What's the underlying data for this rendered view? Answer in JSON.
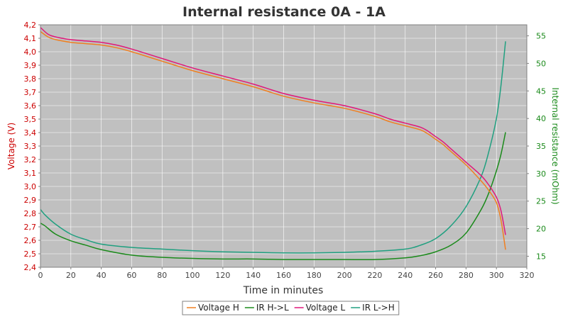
{
  "chart_data": {
    "type": "line",
    "title": "Internal resistance  0A - 1A",
    "xlabel": "Time in minutes",
    "ylabel_left": "Voltage (V)",
    "ylabel_right": "Internal resistance (mOhm)",
    "xlim": [
      0,
      320
    ],
    "ylim_left": [
      2.4,
      4.2
    ],
    "ylim_right": [
      13,
      57
    ],
    "x_ticks": [
      "0",
      "20",
      "40",
      "60",
      "80",
      "100",
      "120",
      "140",
      "160",
      "180",
      "200",
      "220",
      "240",
      "260",
      "280",
      "300",
      "320"
    ],
    "y_left_ticks": [
      "2,4",
      "2,5",
      "2,6",
      "2,7",
      "2,8",
      "2,9",
      "3,0",
      "3,1",
      "3,2",
      "3,3",
      "3,4",
      "3,5",
      "3,6",
      "3,7",
      "3,8",
      "3,9",
      "4,0",
      "4,1",
      "4,2"
    ],
    "y_right_ticks": [
      "15",
      "20",
      "25",
      "30",
      "35",
      "40",
      "45",
      "50",
      "55"
    ],
    "grid": true,
    "legend_position": "bottom",
    "background_color": "#c0c0c0",
    "series": [
      {
        "name": "Voltage H",
        "axis": "left",
        "color": "#f07f20",
        "x": [
          0,
          5,
          10,
          20,
          30,
          40,
          50,
          60,
          80,
          100,
          120,
          140,
          160,
          180,
          200,
          220,
          230,
          240,
          250,
          255,
          260,
          265,
          270,
          280,
          290,
          295,
          300,
          303,
          306
        ],
        "y": [
          4.15,
          4.11,
          4.09,
          4.07,
          4.06,
          4.05,
          4.03,
          4.0,
          3.93,
          3.86,
          3.8,
          3.74,
          3.67,
          3.62,
          3.58,
          3.52,
          3.48,
          3.45,
          3.42,
          3.39,
          3.35,
          3.31,
          3.26,
          3.16,
          3.04,
          2.97,
          2.88,
          2.75,
          2.53
        ]
      },
      {
        "name": "IR H->L",
        "axis": "right",
        "color": "#1a8a1a",
        "x": [
          0,
          3,
          10,
          20,
          30,
          40,
          60,
          80,
          100,
          120,
          140,
          160,
          180,
          200,
          220,
          240,
          250,
          260,
          270,
          280,
          290,
          295,
          300,
          303,
          306
        ],
        "y": [
          21.0,
          20.5,
          19.0,
          17.8,
          17.0,
          16.2,
          15.2,
          14.8,
          14.6,
          14.5,
          14.5,
          14.4,
          14.4,
          14.4,
          14.4,
          14.7,
          15.1,
          15.8,
          17.0,
          19.2,
          23.5,
          26.5,
          30.5,
          33.5,
          37.5
        ]
      },
      {
        "name": "Voltage L",
        "axis": "left",
        "color": "#e0187a",
        "x": [
          0,
          5,
          10,
          20,
          30,
          40,
          50,
          60,
          80,
          100,
          120,
          140,
          160,
          180,
          200,
          220,
          230,
          240,
          250,
          255,
          260,
          265,
          270,
          280,
          290,
          295,
          300,
          303,
          306
        ],
        "y": [
          4.18,
          4.13,
          4.11,
          4.09,
          4.08,
          4.07,
          4.05,
          4.02,
          3.95,
          3.88,
          3.82,
          3.76,
          3.69,
          3.64,
          3.6,
          3.54,
          3.5,
          3.47,
          3.44,
          3.41,
          3.37,
          3.33,
          3.28,
          3.18,
          3.08,
          3.01,
          2.92,
          2.82,
          2.64
        ]
      },
      {
        "name": "IR L->H",
        "axis": "right",
        "color": "#20a080",
        "x": [
          0,
          3,
          10,
          20,
          30,
          40,
          60,
          80,
          100,
          120,
          140,
          160,
          180,
          200,
          220,
          240,
          250,
          260,
          270,
          280,
          290,
          295,
          300,
          303,
          306
        ],
        "y": [
          23.5,
          22.5,
          20.8,
          19.0,
          18.0,
          17.2,
          16.6,
          16.3,
          16.0,
          15.8,
          15.7,
          15.6,
          15.6,
          15.7,
          15.9,
          16.3,
          17.0,
          18.2,
          20.5,
          24.0,
          29.5,
          34.0,
          40.0,
          46.0,
          54.0
        ]
      }
    ]
  }
}
